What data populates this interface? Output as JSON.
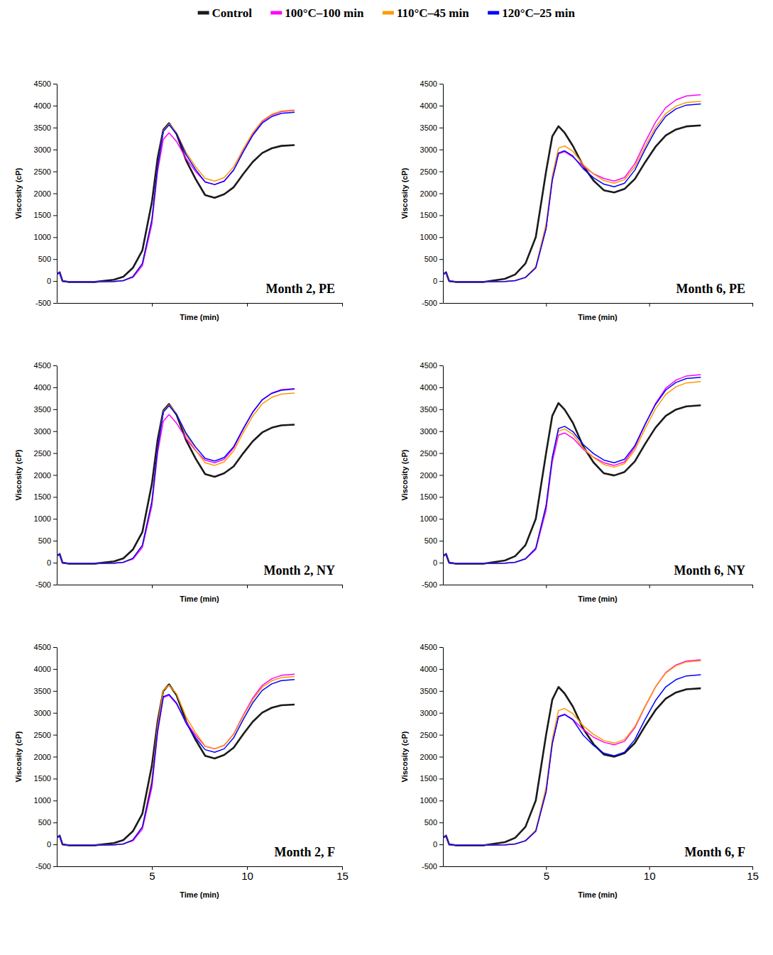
{
  "chart_data": [
    {
      "type": "line",
      "title": "Month 2, PE",
      "xlabel": "Time (min)",
      "ylabel": "Viscosity (cP)",
      "xlim": [
        0,
        15
      ],
      "ylim": [
        -500,
        4500
      ],
      "xticks": [
        5,
        10,
        15
      ],
      "yticks": [
        -500,
        0,
        500,
        1000,
        1500,
        2000,
        2500,
        3000,
        3500,
        4000,
        4500
      ],
      "tick_labels": "y",
      "legend": "top",
      "x": [
        0,
        0.15,
        0.3,
        0.6,
        2,
        3,
        3.5,
        4,
        4.5,
        5,
        5.3,
        5.6,
        5.9,
        6.3,
        6.8,
        7.3,
        7.8,
        8.3,
        8.8,
        9.3,
        9.8,
        10.3,
        10.8,
        11.3,
        11.8,
        12.5
      ],
      "series": [
        {
          "name": "Control",
          "color": "#1a1a1a",
          "values": [
            150,
            200,
            0,
            -20,
            -20,
            30,
            100,
            300,
            700,
            1800,
            2800,
            3450,
            3600,
            3350,
            2750,
            2325,
            1960,
            1900,
            1980,
            2140,
            2440,
            2716,
            2920,
            3028,
            3082,
            3100
          ]
        },
        {
          "name": "100°C–100 min",
          "color": "#ff00ff",
          "values": [
            150,
            200,
            0,
            -20,
            -20,
            -10,
            10,
            80,
            350,
            1300,
            2500,
            3230,
            3380,
            3180,
            2790,
            2495,
            2260,
            2200,
            2280,
            2538,
            2960,
            3349,
            3636,
            3789,
            3865,
            3890
          ]
        },
        {
          "name": "110°C–45 min",
          "color": "#ff9900",
          "values": [
            150,
            200,
            0,
            -20,
            -20,
            -10,
            10,
            100,
            400,
            1400,
            2600,
            3430,
            3580,
            3380,
            2930,
            2605,
            2340,
            2280,
            2360,
            2604,
            3009,
            3382,
            3657,
            3803,
            3876,
            3900
          ]
        },
        {
          "name": "120°C–25 min",
          "color": "#0000ff",
          "values": [
            150,
            200,
            0,
            -20,
            -20,
            -10,
            10,
            100,
            400,
            1400,
            2600,
            3410,
            3560,
            3360,
            2880,
            2540,
            2260,
            2200,
            2280,
            2530,
            2943,
            3322,
            3603,
            3751,
            3825,
            3850
          ]
        }
      ]
    },
    {
      "type": "line",
      "title": "Month 6, PE",
      "xlabel": "Time (min)",
      "ylabel": "Viscosity (cP)",
      "xlim": [
        0,
        15
      ],
      "ylim": [
        -500,
        4500
      ],
      "xticks": [
        5,
        10,
        15
      ],
      "yticks": [
        -500,
        0,
        500,
        1000,
        1500,
        2000,
        2500,
        3000,
        3500,
        4000,
        4500
      ],
      "tick_labels": "y",
      "x": [
        0,
        0.15,
        0.3,
        0.6,
        2,
        3,
        3.5,
        4,
        4.5,
        5,
        5.3,
        5.6,
        5.9,
        6.3,
        6.8,
        7.3,
        7.8,
        8.3,
        8.8,
        9.3,
        9.8,
        10.3,
        10.8,
        11.3,
        11.8,
        12.5
      ],
      "series": [
        {
          "name": "Control",
          "color": "#1a1a1a",
          "values": [
            150,
            200,
            0,
            -20,
            -20,
            50,
            150,
            400,
            1000,
            2500,
            3300,
            3530,
            3380,
            3080,
            2624,
            2292,
            2070,
            2020,
            2100,
            2326,
            2709,
            3060,
            3321,
            3458,
            3527,
            3550
          ]
        },
        {
          "name": "100°C–100 min",
          "color": "#ff00ff",
          "values": [
            150,
            200,
            0,
            -20,
            -20,
            -10,
            10,
            80,
            300,
            1200,
            2300,
            2900,
            2950,
            2830,
            2615,
            2448,
            2340,
            2280,
            2360,
            2674,
            3167,
            3620,
            3955,
            4132,
            4220,
            4250
          ]
        },
        {
          "name": "110°C–45 min",
          "color": "#ff9900",
          "values": [
            150,
            200,
            0,
            -20,
            -20,
            -10,
            10,
            90,
            330,
            1300,
            2400,
            3030,
            3080,
            2960,
            2655,
            2443,
            2290,
            2230,
            2310,
            2604,
            3072,
            3502,
            3820,
            3988,
            4072,
            4100
          ]
        },
        {
          "name": "120°C–25 min",
          "color": "#0000ff",
          "values": [
            150,
            200,
            0,
            -20,
            -20,
            -10,
            10,
            80,
            300,
            1200,
            2300,
            2920,
            2970,
            2850,
            2560,
            2355,
            2210,
            2150,
            2230,
            2528,
            3001,
            3435,
            3757,
            3927,
            4012,
            4040
          ]
        }
      ]
    },
    {
      "type": "line",
      "title": "Month 2, NY",
      "xlabel": "Time (min)",
      "ylabel": "Viscosity (cP)",
      "xlim": [
        0,
        15
      ],
      "ylim": [
        -500,
        4500
      ],
      "xticks": [
        5,
        10,
        15
      ],
      "yticks": [
        -500,
        0,
        500,
        1000,
        1500,
        2000,
        2500,
        3000,
        3500,
        4000,
        4500
      ],
      "tick_labels": "y",
      "x": [
        0,
        0.15,
        0.3,
        0.6,
        2,
        3,
        3.5,
        4,
        4.5,
        5,
        5.3,
        5.6,
        5.9,
        6.3,
        6.8,
        7.3,
        7.8,
        8.3,
        8.8,
        9.3,
        9.8,
        10.3,
        10.8,
        11.3,
        11.8,
        12.5
      ],
      "series": [
        {
          "name": "Control",
          "color": "#1a1a1a",
          "values": [
            150,
            200,
            0,
            -20,
            -20,
            30,
            100,
            300,
            700,
            1800,
            2800,
            3470,
            3620,
            3370,
            2790,
            2375,
            2020,
            1960,
            2040,
            2198,
            2496,
            2769,
            2972,
            3079,
            3132,
            3150
          ]
        },
        {
          "name": "100°C–100 min",
          "color": "#ff00ff",
          "values": [
            150,
            200,
            0,
            -20,
            -20,
            -10,
            10,
            80,
            350,
            1300,
            2500,
            3230,
            3380,
            3180,
            2830,
            2555,
            2340,
            2280,
            2360,
            2618,
            3041,
            3429,
            3717,
            3869,
            3945,
            3970
          ]
        },
        {
          "name": "110°C–45 min",
          "color": "#ff9900",
          "values": [
            150,
            200,
            0,
            -20,
            -20,
            -10,
            10,
            100,
            400,
            1400,
            2600,
            3450,
            3600,
            3400,
            2910,
            2565,
            2280,
            2220,
            2300,
            2550,
            2963,
            3342,
            3623,
            3771,
            3845,
            3870
          ]
        },
        {
          "name": "120°C–25 min",
          "color": "#0000ff",
          "values": [
            150,
            200,
            0,
            -20,
            -20,
            -10,
            10,
            100,
            400,
            1400,
            2600,
            3430,
            3580,
            3380,
            2950,
            2635,
            2380,
            2320,
            2400,
            2648,
            3058,
            3435,
            3714,
            3862,
            3935,
            3960
          ]
        }
      ]
    },
    {
      "type": "line",
      "title": "Month 6, NY",
      "xlabel": "Time (min)",
      "ylabel": "Viscosity (cP)",
      "xlim": [
        0,
        15
      ],
      "ylim": [
        -500,
        4500
      ],
      "xticks": [
        5,
        10,
        15
      ],
      "yticks": [
        -500,
        0,
        500,
        1000,
        1500,
        2000,
        2500,
        3000,
        3500,
        4000,
        4500
      ],
      "tick_labels": "y",
      "x": [
        0,
        0.15,
        0.3,
        0.6,
        2,
        3,
        3.5,
        4,
        4.5,
        5,
        5.3,
        5.6,
        5.9,
        6.3,
        6.8,
        7.3,
        7.8,
        8.3,
        8.8,
        9.3,
        9.8,
        10.3,
        10.8,
        11.3,
        11.8,
        12.5
      ],
      "series": [
        {
          "name": "Control",
          "color": "#1a1a1a",
          "values": [
            150,
            200,
            0,
            -20,
            -20,
            50,
            150,
            400,
            1000,
            2500,
            3350,
            3640,
            3490,
            3190,
            2650,
            2287,
            2040,
            1990,
            2070,
            2310,
            2710,
            3078,
            3350,
            3494,
            3566,
            3590
          ]
        },
        {
          "name": "100°C–100 min",
          "color": "#ff00ff",
          "values": [
            150,
            200,
            0,
            -20,
            -20,
            -10,
            10,
            80,
            300,
            1200,
            2300,
            2910,
            2960,
            2840,
            2590,
            2405,
            2280,
            2220,
            2300,
            2634,
            3152,
            3628,
            3980,
            4166,
            4259,
            4290
          ]
        },
        {
          "name": "110°C–45 min",
          "color": "#ff9900",
          "values": [
            150,
            200,
            0,
            -20,
            -20,
            -10,
            10,
            90,
            330,
            1300,
            2400,
            3000,
            3050,
            2930,
            2615,
            2398,
            2240,
            2180,
            2260,
            2570,
            3058,
            3506,
            3838,
            4013,
            4101,
            4130
          ]
        },
        {
          "name": "120°C–25 min",
          "color": "#0000ff",
          "values": [
            150,
            200,
            0,
            -20,
            -20,
            -10,
            10,
            90,
            330,
            1300,
            2400,
            3060,
            3110,
            2990,
            2695,
            2488,
            2340,
            2280,
            2360,
            2670,
            3158,
            3606,
            3938,
            4113,
            4201,
            4230
          ]
        }
      ]
    },
    {
      "type": "line",
      "title": "Month 2, F",
      "xlabel": "Time (min)",
      "ylabel": "Viscosity (cP)",
      "xlim": [
        0,
        15
      ],
      "ylim": [
        -500,
        4500
      ],
      "xticks": [
        5,
        10,
        15
      ],
      "yticks": [
        -500,
        0,
        500,
        1000,
        1500,
        2000,
        2500,
        3000,
        3500,
        4000,
        4500
      ],
      "x": [
        0,
        0.15,
        0.3,
        0.6,
        2,
        3,
        3.5,
        4,
        4.5,
        5,
        5.3,
        5.6,
        5.9,
        6.3,
        6.8,
        7.3,
        7.8,
        8.3,
        8.8,
        9.3,
        9.8,
        10.3,
        10.8,
        11.3,
        11.8,
        12.5
      ],
      "series": [
        {
          "name": "Control",
          "color": "#1a1a1a",
          "values": [
            150,
            200,
            0,
            -20,
            -20,
            30,
            100,
            300,
            700,
            1800,
            2800,
            3500,
            3650,
            3400,
            2805,
            2383,
            2020,
            1960,
            2040,
            2206,
            2514,
            2796,
            3006,
            3116,
            3172,
            3190
          ]
        },
        {
          "name": "100°C–100 min",
          "color": "#ff00ff",
          "values": [
            150,
            200,
            0,
            -20,
            -20,
            -10,
            10,
            80,
            350,
            1300,
            2550,
            3350,
            3400,
            3200,
            2790,
            2485,
            2240,
            2180,
            2260,
            2520,
            2945,
            3336,
            3625,
            3778,
            3855,
            3880
          ]
        },
        {
          "name": "110°C–45 min",
          "color": "#ff9900",
          "values": [
            150,
            200,
            0,
            -20,
            -20,
            -10,
            10,
            100,
            400,
            1500,
            2700,
            3520,
            3630,
            3430,
            2905,
            2543,
            2240,
            2180,
            2260,
            2510,
            2923,
            3302,
            3583,
            3731,
            3805,
            3830
          ]
        },
        {
          "name": "120°C–25 min",
          "color": "#0000ff",
          "values": [
            150,
            200,
            0,
            -20,
            -20,
            -10,
            10,
            100,
            400,
            1400,
            2600,
            3370,
            3420,
            3220,
            2760,
            2430,
            2160,
            2100,
            2180,
            2432,
            2847,
            3229,
            3511,
            3660,
            3735,
            3760
          ]
        }
      ]
    },
    {
      "type": "line",
      "title": "Month 6, F",
      "xlabel": "Time (min)",
      "ylabel": "Viscosity (cP)",
      "xlim": [
        0,
        15
      ],
      "ylim": [
        -500,
        4500
      ],
      "xticks": [
        5,
        10,
        15
      ],
      "yticks": [
        -500,
        0,
        500,
        1000,
        1500,
        2000,
        2500,
        3000,
        3500,
        4000,
        4500
      ],
      "x": [
        0,
        0.15,
        0.3,
        0.6,
        2,
        3,
        3.5,
        4,
        4.5,
        5,
        5.3,
        5.6,
        5.9,
        6.3,
        6.8,
        7.3,
        7.8,
        8.3,
        8.8,
        9.3,
        9.8,
        10.3,
        10.8,
        11.3,
        11.8,
        12.5
      ],
      "series": [
        {
          "name": "Control",
          "color": "#1a1a1a",
          "values": [
            150,
            200,
            0,
            -20,
            -20,
            50,
            150,
            400,
            1000,
            2500,
            3300,
            3590,
            3440,
            3140,
            2636,
            2286,
            2050,
            2000,
            2080,
            2312,
            2702,
            3061,
            3326,
            3466,
            3537,
            3560
          ]
        },
        {
          "name": "100°C–100 min",
          "color": "#ff00ff",
          "values": [
            150,
            200,
            0,
            -20,
            -20,
            -10,
            10,
            80,
            300,
            1200,
            2300,
            2920,
            2970,
            2850,
            2620,
            2445,
            2330,
            2270,
            2350,
            2658,
            3143,
            3589,
            3919,
            4094,
            4181,
            4210
          ]
        },
        {
          "name": "110°C–45 min",
          "color": "#ff9900",
          "values": [
            150,
            200,
            0,
            -20,
            -20,
            -10,
            10,
            90,
            330,
            1300,
            2400,
            3050,
            3100,
            2980,
            2705,
            2508,
            2370,
            2310,
            2390,
            2686,
            3156,
            3588,
            3908,
            4077,
            4162,
            4190
          ]
        },
        {
          "name": "120°C–25 min",
          "color": "#0000ff",
          "values": [
            150,
            200,
            0,
            -20,
            -20,
            -10,
            10,
            80,
            300,
            1200,
            2300,
            2910,
            2960,
            2840,
            2490,
            2255,
            2080,
            2020,
            2100,
            2390,
            2853,
            3278,
            3593,
            3759,
            3842,
            3870
          ]
        }
      ]
    }
  ]
}
